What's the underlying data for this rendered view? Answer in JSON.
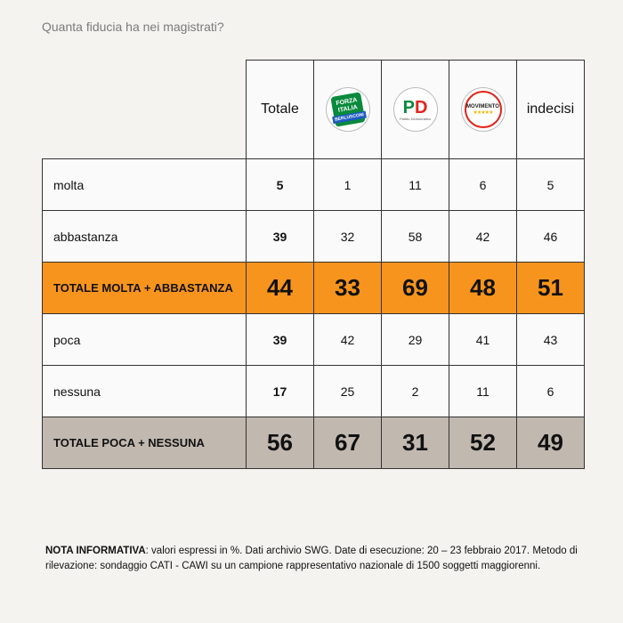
{
  "title": "Quanta fiducia ha nei magistrati?",
  "chart_data": {
    "type": "table",
    "columns": [
      "Totale",
      "FORZA ITALIA BERLUSCONI",
      "PD Partito Democratico",
      "MOVIMENTO 5 STELLE",
      "indecisi"
    ],
    "rows": [
      {
        "label": "molta",
        "values": [
          5,
          1,
          11,
          6,
          5
        ],
        "style": "normal"
      },
      {
        "label": "abbastanza",
        "values": [
          39,
          32,
          58,
          42,
          46
        ],
        "style": "normal"
      },
      {
        "label": "TOTALE MOLTA + ABBASTANZA",
        "values": [
          44,
          33,
          69,
          48,
          51
        ],
        "style": "total-orange"
      },
      {
        "label": "poca",
        "values": [
          39,
          42,
          29,
          41,
          43
        ],
        "style": "normal"
      },
      {
        "label": "nessuna",
        "values": [
          17,
          25,
          2,
          11,
          6
        ],
        "style": "normal"
      },
      {
        "label": "TOTALE POCA + NESSUNA",
        "values": [
          56,
          67,
          31,
          52,
          49
        ],
        "style": "total-gray"
      }
    ]
  },
  "logos": {
    "fi": {
      "line1": "FORZA",
      "line2": "ITALIA",
      "line3": "BERLUSCONI"
    },
    "pd": {
      "p": "P",
      "d": "D",
      "sub": "Partito Democratico"
    },
    "m5s": {
      "top": "MOVIMENTO",
      "stars": "★★★★★"
    }
  },
  "note": {
    "bold": "NOTA INFORMATIVA",
    "text": ": valori espressi in %. Dati archivio SWG. Date di esecuzione: 20 – 23 febbraio 2017. Metodo di rilevazione: sondaggio CATI - CAWI su un campione rappresentativo nazionale di 1500 soggetti maggiorenni."
  },
  "colors": {
    "orange": "#f7941d",
    "gray": "#c1b8b0",
    "fi_green": "#0a8a3c",
    "pd_red": "#e2231a"
  }
}
